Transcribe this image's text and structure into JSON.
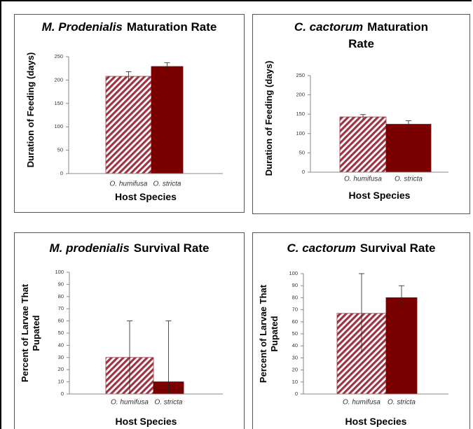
{
  "chart_data": [
    {
      "type": "bar",
      "title": {
        "species": "M. Prodenialis",
        "text": "Maturation Rate"
      },
      "ylabel": "Duration of Feeding (days)",
      "xlabel": "Host Species",
      "categories": [
        "O. humifusa",
        "O. stricta"
      ],
      "values": [
        208,
        229
      ],
      "errors": [
        10,
        8
      ],
      "colors": [
        "#9e3442",
        "#7a0000"
      ],
      "hatched": [
        true,
        false
      ],
      "ylim": [
        0,
        250
      ],
      "yticks": [
        0,
        50,
        100,
        150,
        200,
        250
      ]
    },
    {
      "type": "bar",
      "title": {
        "species": "C. cactorum",
        "text": "Maturation Rate"
      },
      "ylabel": "Duration of Feeding (days)",
      "xlabel": "Host Species",
      "categories": [
        "O. humifusa",
        "O. stricta"
      ],
      "values": [
        143,
        124
      ],
      "errors": [
        6,
        9
      ],
      "colors": [
        "#9e3442",
        "#7a0000"
      ],
      "hatched": [
        true,
        false
      ],
      "ylim": [
        0,
        250
      ],
      "yticks": [
        0,
        50,
        100,
        150,
        200,
        250
      ]
    },
    {
      "type": "bar",
      "title": {
        "species": "M. prodenialis",
        "text": "Survival Rate"
      },
      "ylabel": "Percent of Larvae That Pupated",
      "xlabel": "Host Species",
      "categories": [
        "O. humifusa",
        "O. stricta"
      ],
      "values": [
        30,
        10
      ],
      "errors": [
        30,
        50
      ],
      "colors": [
        "#9e3442",
        "#7a0000"
      ],
      "hatched": [
        true,
        false
      ],
      "ylim": [
        0,
        100
      ],
      "yticks": [
        0,
        10,
        20,
        30,
        40,
        50,
        60,
        70,
        80,
        90,
        100
      ]
    },
    {
      "type": "bar",
      "title": {
        "species": "C. cactorum",
        "text": "Survival Rate"
      },
      "ylabel": "Percent of Larvae That Pupated",
      "xlabel": "Host Species",
      "categories": [
        "O. humifusa",
        "O. stricta"
      ],
      "values": [
        67,
        80
      ],
      "errors": [
        33,
        10
      ],
      "colors": [
        "#9e3442",
        "#7a0000"
      ],
      "hatched": [
        true,
        false
      ],
      "ylim": [
        0,
        100
      ],
      "yticks": [
        0,
        10,
        20,
        30,
        40,
        50,
        60,
        70,
        80,
        90,
        100
      ]
    }
  ]
}
